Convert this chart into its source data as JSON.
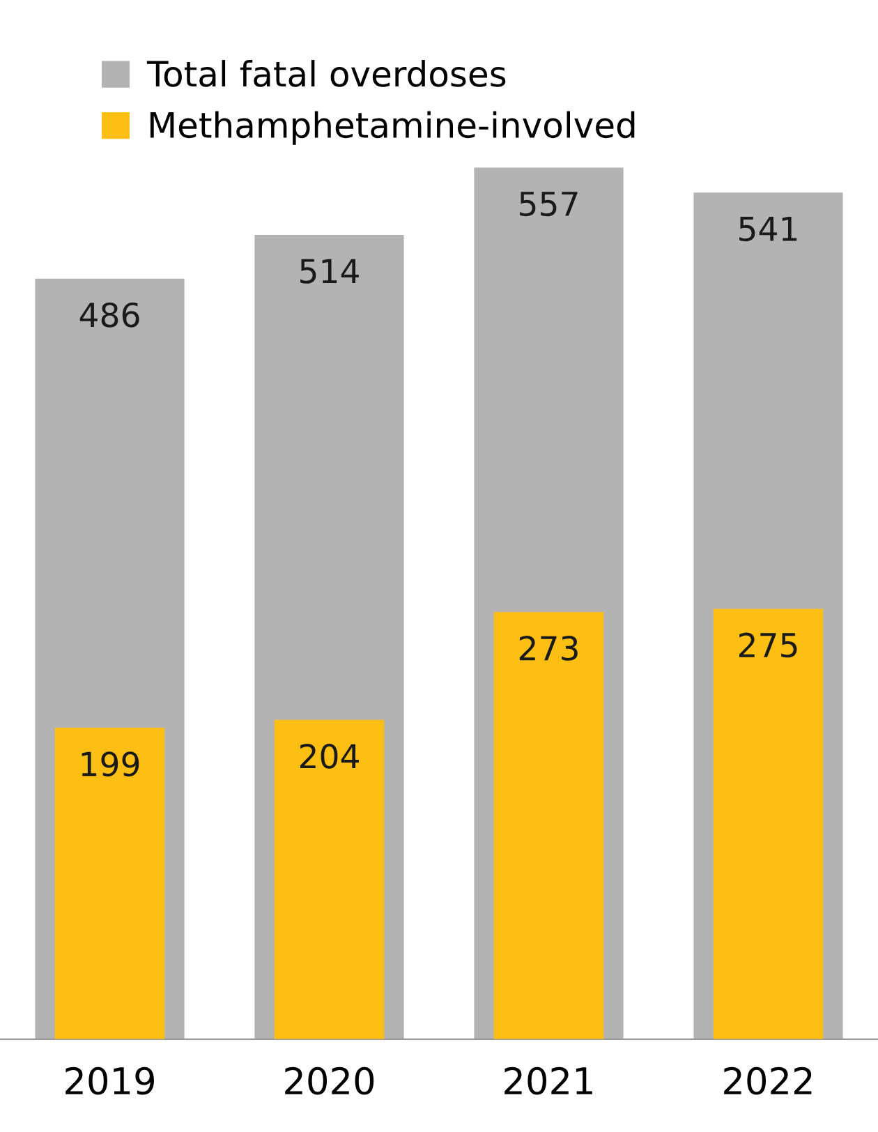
{
  "chart_data": {
    "type": "bar",
    "categories": [
      "2019",
      "2020",
      "2021",
      "2022"
    ],
    "series": [
      {
        "name": "Total fatal overdoses",
        "color": "#b3b3b3",
        "values": [
          486,
          514,
          557,
          541
        ]
      },
      {
        "name": "Methamphetamine-involved",
        "color": "#fdbf13",
        "values": [
          199,
          204,
          273,
          275
        ]
      }
    ],
    "data_labels": true,
    "legend": "top left",
    "grid": false
  }
}
